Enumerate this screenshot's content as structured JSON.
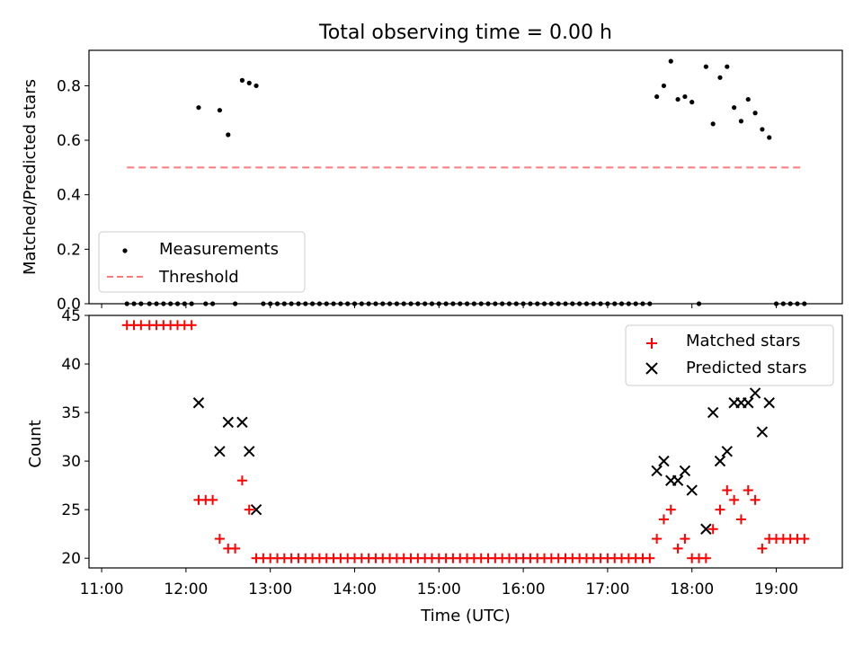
{
  "title": "Total observing time = 0.00 h",
  "chart_data": [
    {
      "type": "scatter",
      "ylabel": "Matched/Predicted stars",
      "ylim": [
        0,
        0.93
      ],
      "xlim": [
        "10:51",
        "19:47"
      ],
      "y_ticks": [
        0.0,
        0.2,
        0.4,
        0.6,
        0.8
      ],
      "y_tick_labels": [
        "0.0",
        "0.2",
        "0.4",
        "0.6",
        "0.8"
      ],
      "legend_position": "lower-left",
      "series": [
        {
          "name": "Measurements",
          "marker": "dot",
          "color": "#000000",
          "x": [
            "11:18",
            "11:23",
            "11:28",
            "11:34",
            "11:39",
            "11:44",
            "11:49",
            "11:54",
            "11:59",
            "12:04",
            "12:09",
            "12:14",
            "12:19",
            "12:24",
            "12:30",
            "12:35",
            "12:40",
            "12:45",
            "12:50",
            "12:55",
            "13:00",
            "13:05",
            "13:10",
            "13:15",
            "13:20",
            "13:25",
            "13:30",
            "13:35",
            "13:40",
            "13:45",
            "13:50",
            "13:55",
            "14:00",
            "14:05",
            "14:10",
            "14:15",
            "14:20",
            "14:25",
            "14:30",
            "14:35",
            "14:40",
            "14:45",
            "14:50",
            "14:55",
            "15:00",
            "15:05",
            "15:10",
            "15:15",
            "15:20",
            "15:25",
            "15:30",
            "15:35",
            "15:40",
            "15:45",
            "15:50",
            "15:55",
            "16:00",
            "16:05",
            "16:10",
            "16:15",
            "16:20",
            "16:25",
            "16:30",
            "16:35",
            "16:40",
            "16:45",
            "16:50",
            "16:55",
            "17:00",
            "17:05",
            "17:10",
            "17:15",
            "17:20",
            "17:25",
            "17:30",
            "17:35",
            "17:40",
            "17:45",
            "17:50",
            "17:55",
            "18:00",
            "18:05",
            "18:10",
            "18:15",
            "18:20",
            "18:25",
            "18:30",
            "18:35",
            "18:40",
            "18:45",
            "18:50",
            "18:55",
            "19:00",
            "19:05",
            "19:10",
            "19:15",
            "19:20"
          ],
          "y": [
            0.0,
            0.0,
            0.0,
            0.0,
            0.0,
            0.0,
            0.0,
            0.0,
            0.0,
            0.0,
            0.72,
            0.0,
            0.0,
            0.71,
            0.62,
            0.0,
            0.82,
            0.81,
            0.8,
            0.0,
            0.0,
            0.0,
            0.0,
            0.0,
            0.0,
            0.0,
            0.0,
            0.0,
            0.0,
            0.0,
            0.0,
            0.0,
            0.0,
            0.0,
            0.0,
            0.0,
            0.0,
            0.0,
            0.0,
            0.0,
            0.0,
            0.0,
            0.0,
            0.0,
            0.0,
            0.0,
            0.0,
            0.0,
            0.0,
            0.0,
            0.0,
            0.0,
            0.0,
            0.0,
            0.0,
            0.0,
            0.0,
            0.0,
            0.0,
            0.0,
            0.0,
            0.0,
            0.0,
            0.0,
            0.0,
            0.0,
            0.0,
            0.0,
            0.0,
            0.0,
            0.0,
            0.0,
            0.0,
            0.0,
            0.0,
            0.76,
            0.8,
            0.89,
            0.75,
            0.76,
            0.74,
            0.0,
            0.87,
            0.66,
            0.83,
            0.87,
            0.72,
            0.67,
            0.75,
            0.7,
            0.64,
            0.61,
            0.0,
            0.0,
            0.0,
            0.0,
            0.0
          ]
        },
        {
          "name": "Threshold",
          "style": "dashed",
          "color": "#ff7b7b",
          "x": [
            "11:18",
            "19:20"
          ],
          "y": [
            0.5,
            0.5
          ]
        }
      ]
    },
    {
      "type": "scatter",
      "xlabel": "Time (UTC)",
      "ylabel": "Count",
      "ylim": [
        19,
        45
      ],
      "xlim": [
        "10:51",
        "19:47"
      ],
      "x_tick_labels": [
        "11:00",
        "12:00",
        "13:00",
        "14:00",
        "15:00",
        "16:00",
        "17:00",
        "18:00",
        "19:00"
      ],
      "y_ticks": [
        20,
        25,
        30,
        35,
        40,
        45
      ],
      "y_tick_labels": [
        "20",
        "25",
        "30",
        "35",
        "40",
        "45"
      ],
      "legend_position": "upper-right",
      "series": [
        {
          "name": "Matched stars",
          "marker": "plus",
          "color": "#ff0000",
          "x": [
            "11:18",
            "11:23",
            "11:28",
            "11:34",
            "11:39",
            "11:44",
            "11:49",
            "11:54",
            "11:59",
            "12:04",
            "12:09",
            "12:14",
            "12:19",
            "12:24",
            "12:30",
            "12:35",
            "12:40",
            "12:45",
            "12:50",
            "12:55",
            "13:00",
            "13:05",
            "13:10",
            "13:15",
            "13:20",
            "13:25",
            "13:30",
            "13:35",
            "13:40",
            "13:45",
            "13:50",
            "13:55",
            "14:00",
            "14:05",
            "14:10",
            "14:15",
            "14:20",
            "14:25",
            "14:30",
            "14:35",
            "14:40",
            "14:45",
            "14:50",
            "14:55",
            "15:00",
            "15:05",
            "15:10",
            "15:15",
            "15:20",
            "15:25",
            "15:30",
            "15:35",
            "15:40",
            "15:45",
            "15:50",
            "15:55",
            "16:00",
            "16:05",
            "16:10",
            "16:15",
            "16:20",
            "16:25",
            "16:30",
            "16:35",
            "16:40",
            "16:45",
            "16:50",
            "16:55",
            "17:00",
            "17:05",
            "17:10",
            "17:15",
            "17:20",
            "17:25",
            "17:30",
            "17:35",
            "17:40",
            "17:45",
            "17:50",
            "17:55",
            "18:00",
            "18:05",
            "18:10",
            "18:15",
            "18:20",
            "18:25",
            "18:30",
            "18:35",
            "18:40",
            "18:45",
            "18:50",
            "18:55",
            "19:00",
            "19:05",
            "19:10",
            "19:15",
            "19:20"
          ],
          "y": [
            44,
            44,
            44,
            44,
            44,
            44,
            44,
            44,
            44,
            44,
            26,
            26,
            26,
            22,
            21,
            21,
            28,
            25,
            20,
            20,
            20,
            20,
            20,
            20,
            20,
            20,
            20,
            20,
            20,
            20,
            20,
            20,
            20,
            20,
            20,
            20,
            20,
            20,
            20,
            20,
            20,
            20,
            20,
            20,
            20,
            20,
            20,
            20,
            20,
            20,
            20,
            20,
            20,
            20,
            20,
            20,
            20,
            20,
            20,
            20,
            20,
            20,
            20,
            20,
            20,
            20,
            20,
            20,
            20,
            20,
            20,
            20,
            20,
            20,
            20,
            22,
            24,
            25,
            21,
            22,
            20,
            20,
            20,
            23,
            25,
            27,
            26,
            24,
            27,
            26,
            21,
            22,
            22,
            22,
            22,
            22,
            22
          ]
        },
        {
          "name": "Predicted stars",
          "marker": "x",
          "color": "#000000",
          "x": [
            "12:09",
            "12:24",
            "12:30",
            "12:40",
            "12:45",
            "12:50",
            "17:35",
            "17:40",
            "17:45",
            "17:50",
            "17:55",
            "18:00",
            "18:10",
            "18:15",
            "18:20",
            "18:25",
            "18:30",
            "18:35",
            "18:40",
            "18:45",
            "18:50",
            "18:55"
          ],
          "y": [
            36,
            31,
            34,
            34,
            31,
            25,
            29,
            30,
            28,
            28,
            29,
            27,
            23,
            35,
            30,
            31,
            36,
            36,
            36,
            37,
            33,
            36
          ]
        }
      ]
    }
  ]
}
